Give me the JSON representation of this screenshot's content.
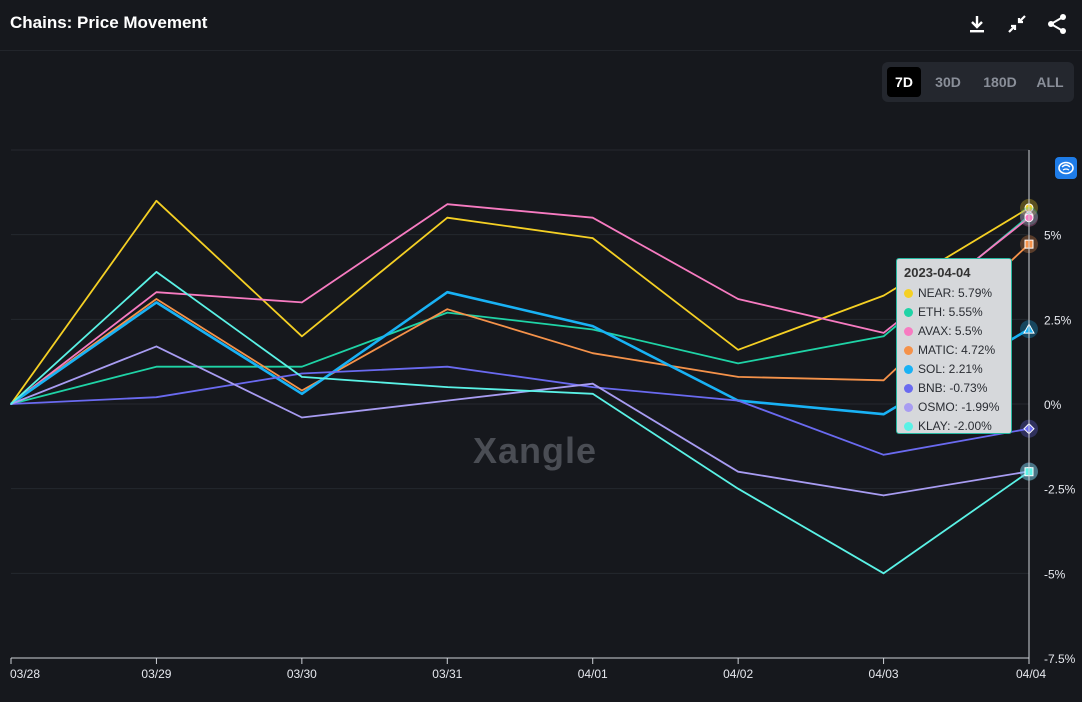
{
  "header": {
    "title": "Chains: Price Movement",
    "icons": [
      "download-icon",
      "collapse-icon",
      "share-icon"
    ]
  },
  "range": {
    "options": [
      "7D",
      "30D",
      "180D",
      "ALL"
    ],
    "active": "7D"
  },
  "watermark": "Xangle",
  "tooltip": {
    "date": "2023-04-04",
    "rows": [
      {
        "label": "NEAR: 5.79%",
        "color": "#f5d024"
      },
      {
        "label": "ETH: 5.55%",
        "color": "#1fd3a6"
      },
      {
        "label": "AVAX: 5.5%",
        "color": "#f77bc1"
      },
      {
        "label": "MATIC: 4.72%",
        "color": "#f5924a"
      },
      {
        "label": "SOL: 2.21%",
        "color": "#19b2f5"
      },
      {
        "label": "BNB: -0.73%",
        "color": "#6a6af0"
      },
      {
        "label": "OSMO: -1.99%",
        "color": "#a89cf2"
      },
      {
        "label": "KLAY: -2.00%",
        "color": "#5af2e6"
      }
    ]
  },
  "chart_data": {
    "type": "line",
    "x": [
      "03/28",
      "03/29",
      "03/30",
      "03/31",
      "04/01",
      "04/02",
      "04/03",
      "04/04"
    ],
    "y_ticks": [
      "5%",
      "2.5%",
      "0%",
      "-2.5%",
      "-5%",
      "-7.5%"
    ],
    "y_tick_values": [
      5,
      2.5,
      0,
      -2.5,
      -5,
      -7.5
    ],
    "ylim": [
      -7.5,
      7.5
    ],
    "y_axis_position": "right",
    "grid": "horizontal",
    "series": [
      {
        "name": "NEAR",
        "color": "#f5d024",
        "values": [
          0,
          6.0,
          2.0,
          5.5,
          4.9,
          1.6,
          3.2,
          5.79
        ]
      },
      {
        "name": "ETH",
        "color": "#1fd3a6",
        "values": [
          0,
          1.1,
          1.1,
          2.7,
          2.2,
          1.2,
          2.0,
          5.55
        ]
      },
      {
        "name": "AVAX",
        "color": "#f77bc1",
        "values": [
          0,
          3.3,
          3.0,
          5.9,
          5.5,
          3.1,
          2.1,
          5.5
        ]
      },
      {
        "name": "MATIC",
        "color": "#f5924a",
        "values": [
          0,
          3.1,
          0.4,
          2.8,
          1.5,
          0.8,
          0.7,
          4.72
        ]
      },
      {
        "name": "SOL",
        "color": "#19b2f5",
        "values": [
          0,
          3.0,
          0.3,
          3.3,
          2.3,
          0.1,
          -0.3,
          2.21
        ]
      },
      {
        "name": "BNB",
        "color": "#6a6af0",
        "values": [
          0,
          0.2,
          0.9,
          1.1,
          0.5,
          0.1,
          -1.5,
          -0.73
        ]
      },
      {
        "name": "OSMO",
        "color": "#a89cf2",
        "values": [
          0,
          1.7,
          -0.4,
          0.1,
          0.6,
          -2.0,
          -2.7,
          -1.99
        ]
      },
      {
        "name": "KLAY",
        "color": "#5af2e6",
        "values": [
          0,
          3.9,
          0.8,
          0.5,
          0.3,
          -2.5,
          -5.0,
          -2.0
        ]
      }
    ]
  }
}
